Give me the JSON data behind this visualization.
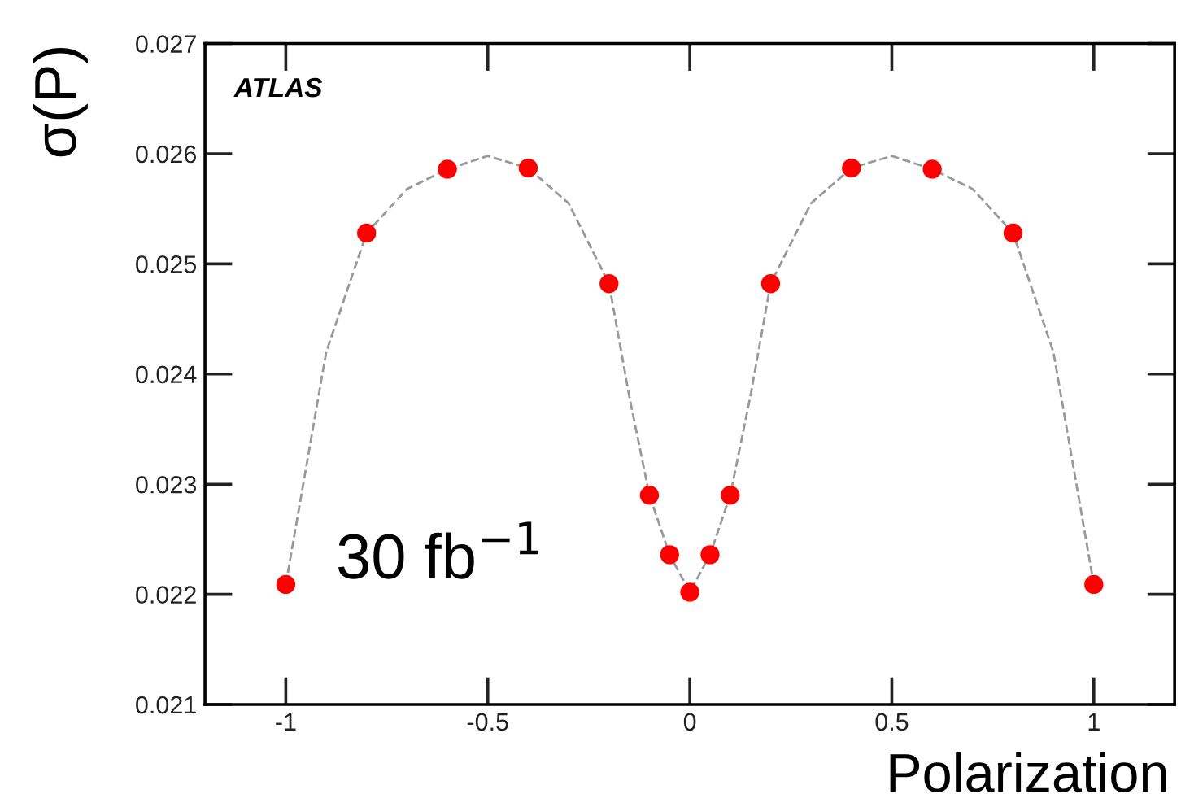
{
  "chart_data": {
    "type": "scatter",
    "xlabel": "Polarization",
    "ylabel": "σ(P)",
    "annotations": [
      "ATLAS",
      "30 fb$^{−1}$"
    ],
    "xlim": [
      -1.2,
      1.2
    ],
    "ylim": [
      0.021,
      0.027
    ],
    "xticks": [
      -1,
      -0.5,
      0,
      0.5,
      1
    ],
    "yticks": [
      0.021,
      0.022,
      0.023,
      0.024,
      0.025,
      0.026,
      0.027
    ],
    "grid": false,
    "legend": false,
    "series": [
      {
        "type": "line",
        "color": "#999999",
        "line_style": "dashed",
        "marker": "none",
        "x": [
          -1,
          -0.9,
          -0.8,
          -0.7,
          -0.6,
          -0.5,
          -0.4,
          -0.3,
          -0.2,
          -0.15,
          -0.1,
          -0.05,
          0,
          0.05,
          0.1,
          0.15,
          0.2,
          0.3,
          0.4,
          0.5,
          0.6,
          0.7,
          0.8,
          0.9,
          1
        ],
        "values": [
          0.02209,
          0.0242,
          0.02528,
          0.02568,
          0.02586,
          0.02598,
          0.02587,
          0.02555,
          0.02482,
          0.0238,
          0.0229,
          0.02236,
          0.02202,
          0.02236,
          0.0229,
          0.0238,
          0.02482,
          0.02555,
          0.02587,
          0.02598,
          0.02586,
          0.02568,
          0.02528,
          0.0242,
          0.02209
        ]
      },
      {
        "type": "scatter",
        "color": "#ff0000",
        "marker": "circle",
        "x": [
          -1,
          -0.8,
          -0.6,
          -0.4,
          -0.2,
          -0.1,
          -0.05,
          0,
          0.05,
          0.1,
          0.2,
          0.4,
          0.6,
          0.8,
          1
        ],
        "values": [
          0.02209,
          0.02528,
          0.02586,
          0.02587,
          0.02482,
          0.0229,
          0.02236,
          0.02202,
          0.02236,
          0.0229,
          0.02482,
          0.02587,
          0.02586,
          0.02528,
          0.02209
        ]
      }
    ]
  }
}
